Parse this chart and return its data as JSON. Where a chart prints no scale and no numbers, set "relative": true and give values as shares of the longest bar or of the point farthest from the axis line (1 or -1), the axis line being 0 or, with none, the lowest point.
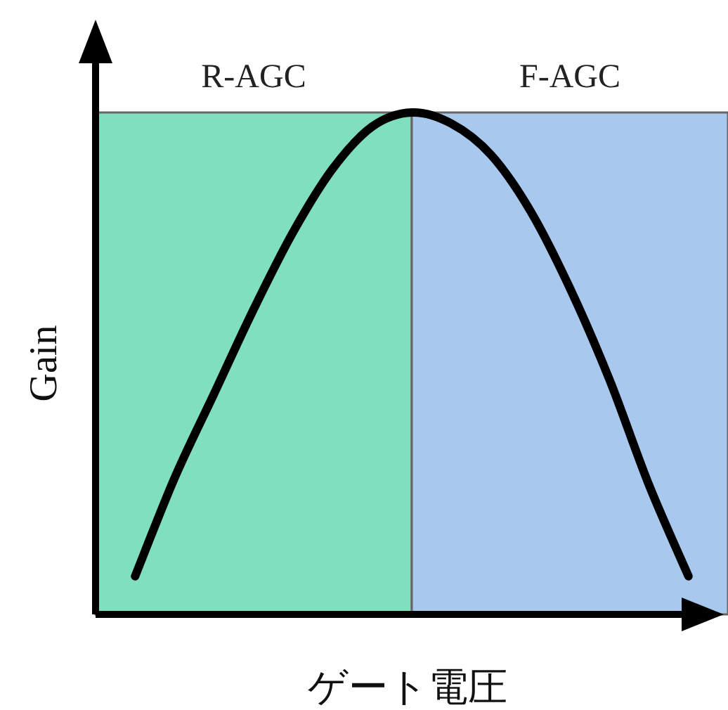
{
  "chart_data": {
    "type": "line",
    "relative": true,
    "xlabel": "ゲート電圧",
    "ylabel": "Gain",
    "categories": [
      null,
      null,
      null,
      null,
      null,
      null,
      null,
      null,
      null,
      null,
      null,
      null,
      null,
      null,
      null,
      null,
      null
    ],
    "series": [
      {
        "name": "R-AGC",
        "type": "area",
        "color": "#7fdfbf",
        "values": [
          1,
          1,
          1,
          1,
          1,
          1,
          1,
          1,
          1,
          null,
          null,
          null,
          null,
          null,
          null,
          null,
          null
        ]
      },
      {
        "name": "F-AGC",
        "type": "area",
        "color": "#a8c8ee",
        "values": [
          null,
          null,
          null,
          null,
          null,
          null,
          null,
          null,
          1,
          1,
          1,
          1,
          1,
          1,
          1,
          1,
          1
        ]
      },
      {
        "color": "#000000",
        "values": [
          null,
          0.076,
          0.272,
          0.44,
          0.608,
          0.762,
          0.888,
          0.972,
          1.0,
          0.978,
          0.916,
          0.804,
          0.65,
          0.468,
          0.258,
          0.076,
          null
        ]
      }
    ]
  }
}
